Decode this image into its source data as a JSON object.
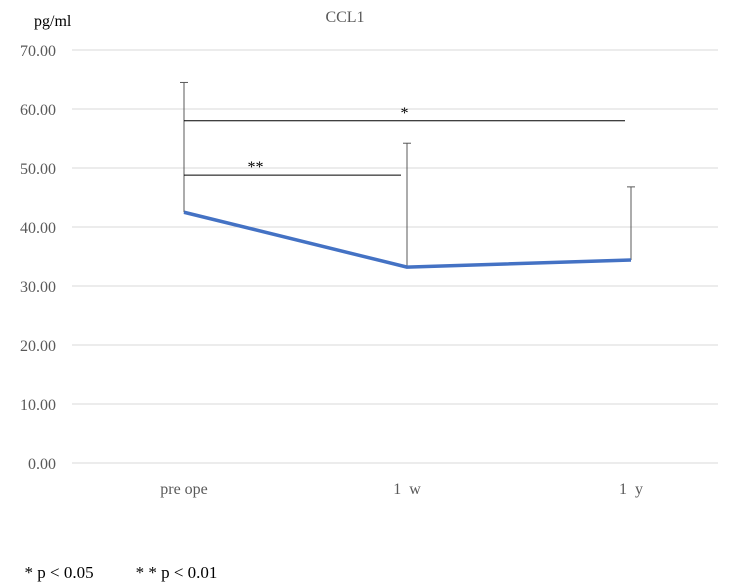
{
  "chart_data": {
    "type": "line",
    "title": "CCL1",
    "ylabel": "pg/ml",
    "xlabel": "",
    "categories": [
      "pre ope",
      "1  w",
      "1  y"
    ],
    "series": [
      {
        "values": [
          42.5,
          33.2,
          34.4
        ],
        "error_upper": [
          64.5,
          54.2,
          46.8
        ]
      }
    ],
    "ylim": [
      0,
      70
    ],
    "ytick_step": 10,
    "ytick_labels": [
      "0.00",
      "10.00",
      "20.00",
      "30.00",
      "40.00",
      "50.00",
      "60.00",
      "70.00"
    ],
    "grid": "horizontal",
    "line_color": "#4472C4",
    "significance": [
      {
        "from": 0,
        "to": 1,
        "level": 48.8,
        "label": "**"
      },
      {
        "from": 0,
        "to": 2,
        "level": 58.0,
        "label": "*"
      }
    ]
  },
  "footnotes": [
    "* p < 0.05",
    "* * p < 0.01"
  ]
}
